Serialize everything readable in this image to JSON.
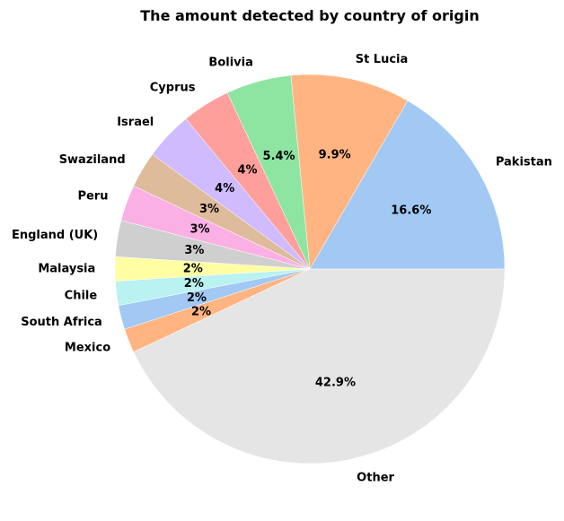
{
  "chart_data": {
    "type": "pie",
    "title": "The amount detected by country of origin",
    "start_angle_deg": 0,
    "direction": "counterclockwise",
    "slices": [
      {
        "label": "Pakistan",
        "value": 16.6,
        "pct_label": "16.6%",
        "color": "#a1c9f4"
      },
      {
        "label": "St Lucia",
        "value": 9.9,
        "pct_label": "9.9%",
        "color": "#ffb482"
      },
      {
        "label": "Bolivia",
        "value": 5.4,
        "pct_label": "5.4%",
        "color": "#8de5a1"
      },
      {
        "label": "Cyprus",
        "value": 4,
        "pct_label": "4%",
        "color": "#ff9f9b"
      },
      {
        "label": "Israel",
        "value": 4,
        "pct_label": "4%",
        "color": "#d0bbff"
      },
      {
        "label": "Swaziland",
        "value": 3,
        "pct_label": "3%",
        "color": "#debb9b"
      },
      {
        "label": "Peru",
        "value": 3,
        "pct_label": "3%",
        "color": "#fab0e4"
      },
      {
        "label": "England (UK)",
        "value": 3,
        "pct_label": "3%",
        "color": "#cfcfcf"
      },
      {
        "label": "Malaysia",
        "value": 2,
        "pct_label": "2%",
        "color": "#fffea3"
      },
      {
        "label": "Chile",
        "value": 2,
        "pct_label": "2%",
        "color": "#b9f2f0"
      },
      {
        "label": "South Africa",
        "value": 2,
        "pct_label": "2%",
        "color": "#a1c9f4"
      },
      {
        "label": "Mexico",
        "value": 2,
        "pct_label": "2%",
        "color": "#ffb482"
      },
      {
        "label": "Other",
        "value": 42.9,
        "pct_label": "42.9%",
        "color": "#e5e5e5"
      }
    ]
  }
}
